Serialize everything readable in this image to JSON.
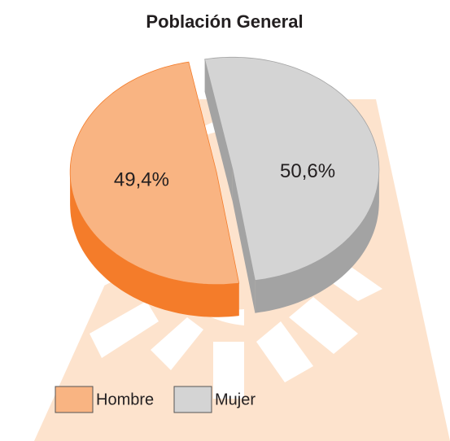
{
  "chart_data": {
    "type": "pie",
    "title": "Población General",
    "categories": [
      "Hombre",
      "Mujer"
    ],
    "values": [
      49.4,
      50.6
    ],
    "value_labels": [
      "49,4%",
      "50,6%"
    ],
    "colors": [
      "#f9b482",
      "#d4d4d4"
    ],
    "side_colors": [
      "#f47c2a",
      "#a3a3a3"
    ],
    "legend": "bottom-left"
  }
}
